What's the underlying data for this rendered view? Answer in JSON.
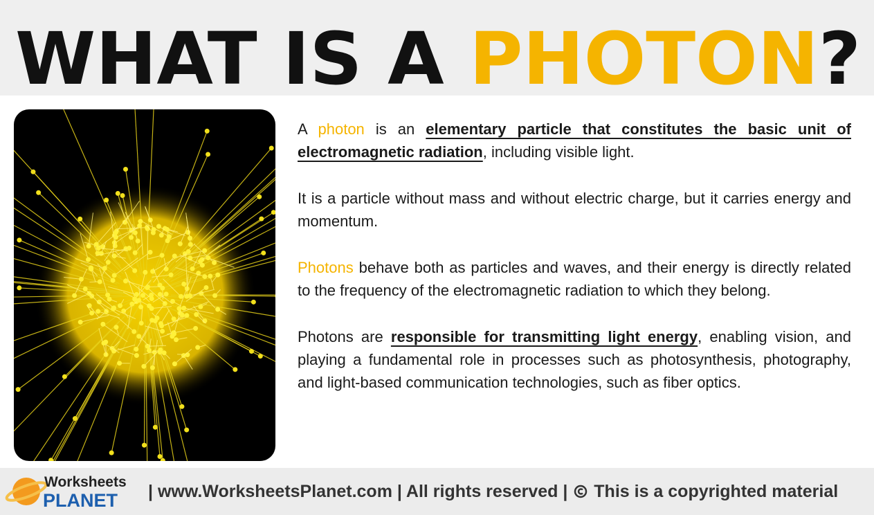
{
  "header": {
    "title": [
      {
        "text": "WHAT IS A ",
        "style": "plain"
      },
      {
        "text": "PHOTON",
        "style": "accent"
      },
      {
        "text": "?",
        "style": "plain"
      }
    ]
  },
  "paragraphs": [
    [
      {
        "text": "A ",
        "style": "plain"
      },
      {
        "text": "photon",
        "style": "accent"
      },
      {
        "text": " is an ",
        "style": "plain"
      },
      {
        "text": "elementary particle that constitutes the basic unit of electromagnetic radiation",
        "style": "emphasis"
      },
      {
        "text": ", including visible light.",
        "style": "plain"
      }
    ],
    [
      {
        "text": "It is a particle without mass and without electric charge, but it carries energy and momentum.",
        "style": "plain"
      }
    ],
    [
      {
        "text": "Photons",
        "style": "accent"
      },
      {
        "text": " behave both as particles and waves, and their energy is directly related to the frequency of the electromagnetic radiation to which they belong.",
        "style": "plain"
      }
    ],
    [
      {
        "text": "Photons are ",
        "style": "plain"
      },
      {
        "text": "responsible for transmitting light energy",
        "style": "emphasis"
      },
      {
        "text": ", enabling vision, and playing a fundamental role in processes such as photosynthesis, photography, and light-based communication technologies, such as fiber optics.",
        "style": "plain"
      }
    ]
  ],
  "footer": {
    "logo_top": "Worksheets",
    "logo_bottom": "PLANET",
    "text": "| www.WorksheetsPlanet.com | All rights reserved |",
    "notice": "This is a copyrighted material"
  }
}
